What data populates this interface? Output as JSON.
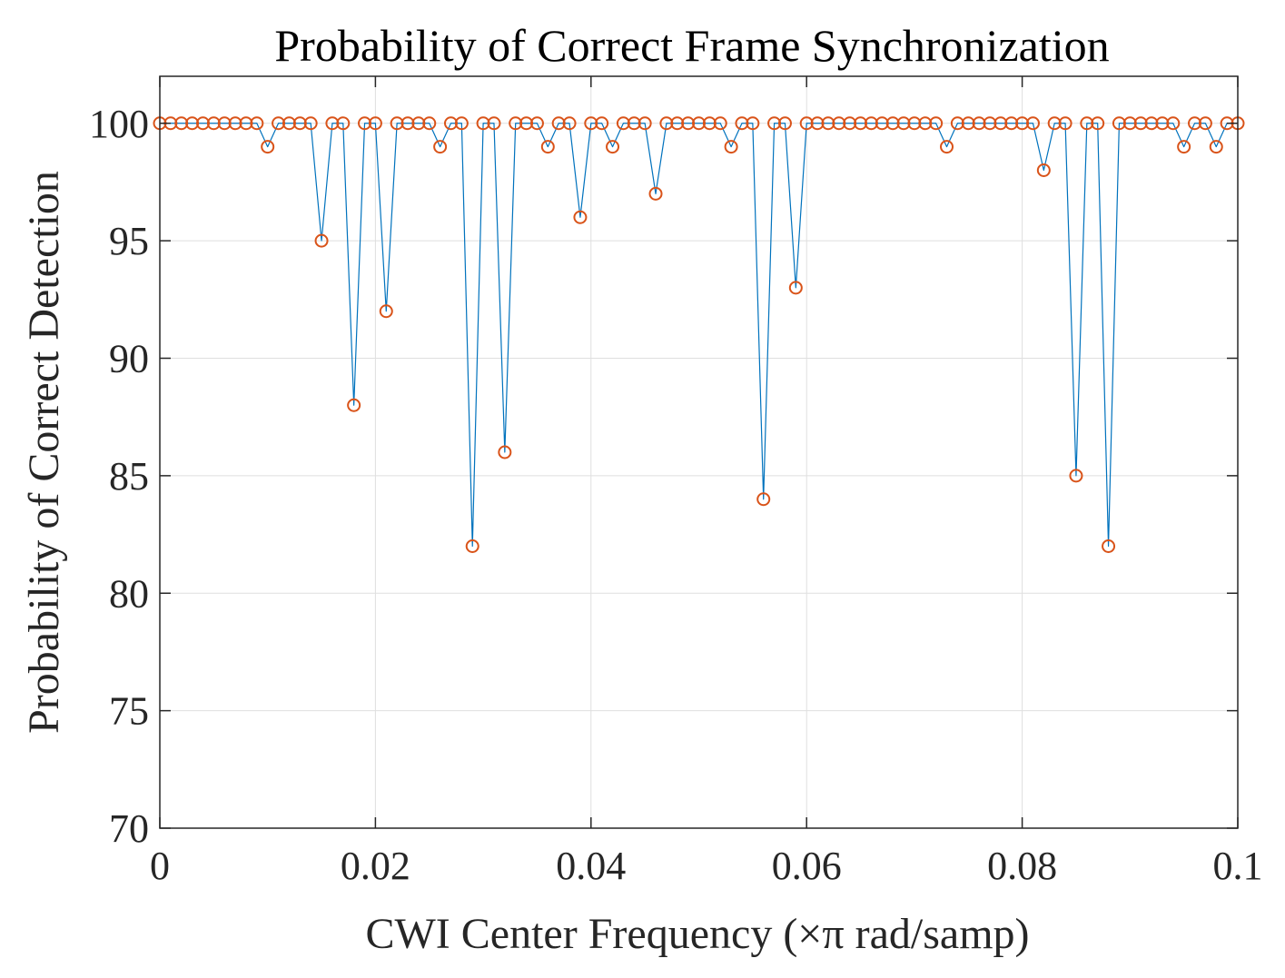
{
  "chart_data": {
    "type": "line",
    "title": "Probability of Correct Frame Synchronization",
    "xlabel": "CWI Center Frequency  (×π rad/samp)",
    "ylabel": "Probability of Correct Detection",
    "xlim": [
      0,
      0.1
    ],
    "ylim": [
      70,
      102
    ],
    "xticks": [
      0,
      0.02,
      0.04,
      0.06,
      0.08,
      0.1
    ],
    "xtick_labels": [
      "0",
      "0.02",
      "0.04",
      "0.06",
      "0.08",
      "0.1"
    ],
    "yticks": [
      70,
      75,
      80,
      85,
      90,
      95,
      100
    ],
    "ytick_labels": [
      "70",
      "75",
      "80",
      "85",
      "90",
      "95",
      "100"
    ],
    "grid": true,
    "line_color": "#0072BD",
    "marker_color": "#D95319",
    "marker": "circle",
    "x_start": 0,
    "x_step": 0.001,
    "values": [
      100,
      100,
      100,
      100,
      100,
      100,
      100,
      100,
      100,
      100,
      99,
      100,
      100,
      100,
      100,
      95,
      100,
      100,
      88,
      100,
      100,
      92,
      100,
      100,
      100,
      100,
      99,
      100,
      100,
      82,
      100,
      100,
      86,
      100,
      100,
      100,
      99,
      100,
      100,
      96,
      100,
      100,
      99,
      100,
      100,
      100,
      97,
      100,
      100,
      100,
      100,
      100,
      100,
      99,
      100,
      100,
      84,
      100,
      100,
      93,
      100,
      100,
      100,
      100,
      100,
      100,
      100,
      100,
      100,
      100,
      100,
      100,
      100,
      99,
      100,
      100,
      100,
      100,
      100,
      100,
      100,
      100,
      98,
      100,
      100,
      85,
      100,
      100,
      82,
      100,
      100,
      100,
      100,
      100,
      100,
      99,
      100,
      100,
      99,
      100,
      100
    ]
  }
}
